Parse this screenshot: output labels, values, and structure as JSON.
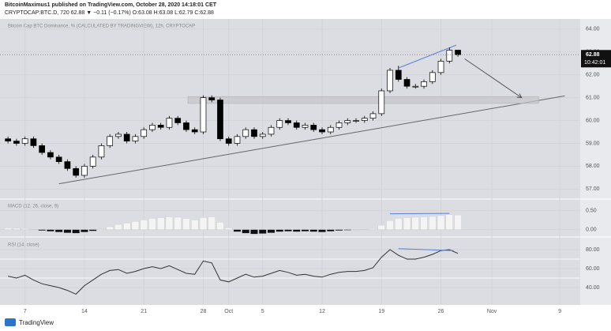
{
  "header": {
    "author_line": "BitcoinMaximus1 published on TradingView.com, October 28, 2020 14:18:01 CET",
    "symbol_line": "CRYPTOCAP:BTC.D, 720 62.88 ▼ −0.11 (−0.17%) O:63.08 H:63.08 L:62.79 C:62.88"
  },
  "footer": {
    "brand": "TradingView"
  },
  "chart_data": [
    {
      "type": "candlestick",
      "title": "Bitcoin Cap BTC Dominance, % (CALCULATED BY TRADINGVIEW), 12h, CRYPTOCAP",
      "x": [
        5,
        6,
        7,
        8,
        9,
        10,
        11,
        12,
        13,
        14,
        15,
        16,
        17,
        18,
        19,
        20,
        21,
        22,
        23,
        24,
        25,
        26,
        27,
        28,
        29,
        30,
        31,
        32,
        33,
        34,
        35,
        36,
        37,
        38,
        39,
        40,
        41,
        42,
        43,
        44,
        45,
        46,
        47,
        48,
        49,
        50,
        51,
        52,
        53,
        54,
        55,
        56,
        57,
        58
      ],
      "open": [
        59.2,
        59.1,
        59.0,
        59.2,
        58.9,
        58.6,
        58.4,
        58.2,
        57.9,
        57.6,
        58.0,
        58.4,
        58.9,
        59.3,
        59.4,
        59.1,
        59.3,
        59.6,
        59.8,
        59.7,
        60.1,
        59.9,
        59.6,
        59.5,
        61.0,
        60.9,
        59.2,
        59.0,
        59.3,
        59.6,
        59.3,
        59.4,
        59.7,
        60.0,
        59.9,
        59.7,
        59.8,
        59.6,
        59.5,
        59.7,
        59.9,
        60.0,
        60.0,
        60.1,
        60.3,
        61.3,
        62.2,
        61.8,
        61.5,
        61.5,
        61.7,
        62.1,
        62.6,
        63.08
      ],
      "high": [
        59.3,
        59.2,
        59.3,
        59.3,
        59.0,
        58.7,
        58.5,
        58.3,
        58.0,
        58.1,
        58.5,
        59.0,
        59.4,
        59.5,
        59.5,
        59.4,
        59.7,
        59.9,
        59.9,
        60.2,
        60.2,
        60.0,
        59.7,
        61.1,
        61.1,
        61.0,
        59.3,
        59.4,
        59.7,
        59.7,
        59.5,
        59.8,
        60.1,
        60.1,
        60.0,
        59.9,
        59.9,
        59.7,
        59.8,
        60.0,
        60.1,
        60.1,
        60.2,
        60.4,
        61.4,
        62.3,
        62.4,
        61.9,
        61.6,
        61.8,
        62.2,
        62.7,
        63.2,
        63.08
      ],
      "low": [
        59.0,
        58.9,
        58.9,
        58.8,
        58.5,
        58.3,
        58.1,
        57.8,
        57.5,
        57.5,
        57.9,
        58.3,
        58.8,
        59.2,
        59.0,
        59.0,
        59.2,
        59.5,
        59.6,
        59.6,
        59.8,
        59.5,
        59.4,
        59.4,
        60.8,
        59.1,
        58.9,
        58.9,
        59.2,
        59.2,
        59.2,
        59.3,
        59.6,
        59.8,
        59.6,
        59.6,
        59.5,
        59.4,
        59.4,
        59.6,
        59.8,
        59.9,
        59.9,
        60.0,
        60.2,
        61.2,
        61.7,
        61.4,
        61.4,
        61.4,
        61.6,
        62.0,
        62.5,
        62.79
      ],
      "close": [
        59.1,
        59.0,
        59.2,
        58.9,
        58.6,
        58.4,
        58.2,
        57.9,
        57.6,
        58.0,
        58.4,
        58.9,
        59.3,
        59.4,
        59.1,
        59.3,
        59.6,
        59.8,
        59.7,
        60.1,
        59.9,
        59.6,
        59.5,
        61.0,
        60.9,
        59.2,
        59.0,
        59.3,
        59.6,
        59.3,
        59.4,
        59.7,
        60.0,
        59.9,
        59.7,
        59.8,
        59.6,
        59.5,
        59.7,
        59.9,
        60.0,
        60.0,
        60.1,
        60.3,
        61.3,
        62.2,
        61.8,
        61.5,
        61.5,
        61.7,
        62.1,
        62.6,
        63.08,
        62.88
      ],
      "up_color": "#ffffff",
      "down_color": "#000000",
      "xlim": [
        4.8,
        71.2
      ],
      "xticks": [
        7,
        14,
        21,
        28,
        {
          "value": 31,
          "label": "Oct"
        },
        {
          "value": 35,
          "label": "5"
        },
        {
          "value": 42,
          "label": "12"
        },
        {
          "value": 49,
          "label": "19"
        },
        {
          "value": 56,
          "label": "26"
        },
        {
          "value": 62,
          "label": "Nov"
        },
        {
          "value": 70,
          "label": "9"
        }
      ],
      "ylim": [
        56.7,
        64.1
      ],
      "yticks": [
        {
          "value": 57,
          "label": "57.00"
        },
        {
          "value": 58,
          "label": "58.00"
        },
        {
          "value": 59,
          "label": "59.00"
        },
        {
          "value": 60,
          "label": "60.00"
        },
        {
          "value": 61,
          "label": "61.00"
        },
        {
          "value": 62,
          "label": "62.00"
        },
        {
          "value": 63,
          "label": "63.00"
        },
        {
          "value": 64,
          "label": "64.00"
        }
      ],
      "last_price": {
        "value": 62.88,
        "label": "62.88"
      },
      "countdown": "10:42:01",
      "drawings": [
        {
          "type": "line",
          "color": "#666666",
          "points": [
            [
              11,
              57.23
            ],
            [
              70.6,
              61.08
            ]
          ]
        },
        {
          "type": "box",
          "color": "#c4c5cb",
          "points": [
            [
              26.2,
              61.05
            ],
            [
              67.5,
              60.75
            ]
          ]
        },
        {
          "type": "arrow",
          "color": "#555555",
          "points": [
            [
              58.8,
              62.7
            ],
            [
              65.5,
              61.0
            ]
          ]
        },
        {
          "type": "line",
          "color": "#5b7fd6",
          "points": [
            [
              51,
              62.3
            ],
            [
              57.8,
              63.3
            ]
          ]
        }
      ]
    },
    {
      "type": "bar",
      "title": "MACD (12, 26, close, 9)",
      "values": [
        0.05,
        0.04,
        0.03,
        0.01,
        -0.02,
        -0.04,
        -0.06,
        -0.08,
        -0.09,
        -0.06,
        -0.03,
        0.02,
        0.08,
        0.14,
        0.18,
        0.22,
        0.26,
        0.3,
        0.32,
        0.34,
        0.33,
        0.3,
        0.26,
        0.32,
        0.34,
        0.2,
        0.05,
        -0.05,
        -0.09,
        -0.11,
        -0.1,
        -0.08,
        -0.05,
        -0.04,
        -0.05,
        -0.04,
        -0.05,
        -0.06,
        -0.04,
        -0.02,
        -0.01,
        0.0,
        0.01,
        0.03,
        0.12,
        0.24,
        0.3,
        0.32,
        0.33,
        0.34,
        0.35,
        0.37,
        0.4,
        0.39
      ],
      "pos_color": "#f4f4f4",
      "neg_color": "#111111",
      "ylim": [
        -0.15,
        0.6
      ],
      "yticks": [
        {
          "value": 0,
          "label": "0.00"
        },
        {
          "value": 0.5,
          "label": "0.50"
        }
      ],
      "drawings": [
        {
          "type": "line",
          "color": "#5b7fd6",
          "points": [
            [
              50,
              0.42
            ],
            [
              57,
              0.43
            ]
          ]
        }
      ]
    },
    {
      "type": "line",
      "title": "RSI (14, close)",
      "color": "#333333",
      "values": [
        52,
        50,
        53,
        48,
        44,
        42,
        40,
        37,
        33,
        42,
        48,
        54,
        58,
        59,
        55,
        57,
        60,
        62,
        60,
        63,
        59,
        55,
        54,
        68,
        66,
        48,
        46,
        50,
        54,
        51,
        52,
        55,
        58,
        56,
        53,
        54,
        52,
        51,
        54,
        56,
        57,
        57,
        58,
        61,
        72,
        80,
        74,
        70,
        70,
        72,
        75,
        79,
        80,
        76
      ],
      "ylim": [
        25,
        90
      ],
      "yticks": [
        {
          "value": 40,
          "label": "40.00"
        },
        {
          "value": 60,
          "label": "60.00"
        },
        {
          "value": 80,
          "label": "80.00"
        }
      ],
      "levels": [
        70,
        50
      ],
      "drawings": [
        {
          "type": "line",
          "color": "#5b7fd6",
          "points": [
            [
              51,
              81
            ],
            [
              57.5,
              79
            ]
          ]
        }
      ]
    }
  ]
}
